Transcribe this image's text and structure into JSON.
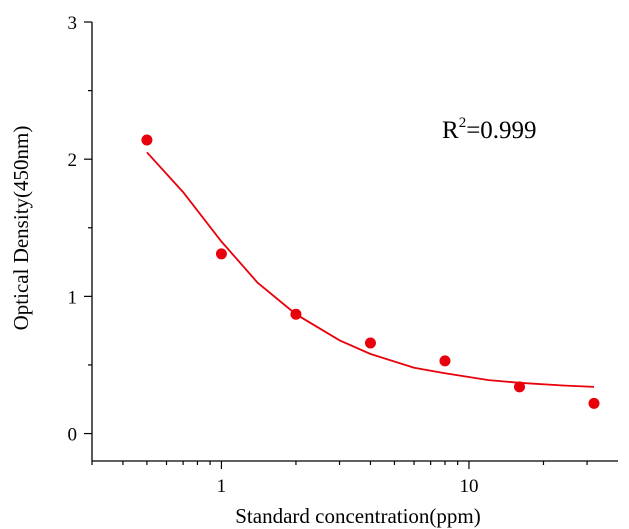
{
  "chart_data": {
    "type": "scatter",
    "title": "",
    "xlabel": "Standard concentration(ppm)",
    "ylabel": "Optical Density(450nm)",
    "x_scale": "log",
    "xlim": [
      0.3,
      40
    ],
    "ylim": [
      -0.2,
      3
    ],
    "x_ticks": [
      {
        "value": 1,
        "label": "1"
      },
      {
        "value": 10,
        "label": "10"
      }
    ],
    "y_ticks": [
      {
        "value": 0,
        "label": "0"
      },
      {
        "value": 1,
        "label": "1"
      },
      {
        "value": 2,
        "label": "2"
      },
      {
        "value": 3,
        "label": "3"
      }
    ],
    "grid": false,
    "series": [
      {
        "type": "scatter",
        "color": "#e8000b",
        "points": [
          {
            "x": 0.5,
            "y": 2.14
          },
          {
            "x": 1,
            "y": 1.31
          },
          {
            "x": 2,
            "y": 0.87
          },
          {
            "x": 4,
            "y": 0.66
          },
          {
            "x": 8,
            "y": 0.53
          },
          {
            "x": 16,
            "y": 0.34
          },
          {
            "x": 32,
            "y": 0.22
          }
        ]
      },
      {
        "type": "line",
        "color": "#e8000b",
        "points": [
          {
            "x": 0.5,
            "y": 2.05
          },
          {
            "x": 0.7,
            "y": 1.76
          },
          {
            "x": 1,
            "y": 1.4
          },
          {
            "x": 1.4,
            "y": 1.1
          },
          {
            "x": 2,
            "y": 0.87
          },
          {
            "x": 3,
            "y": 0.68
          },
          {
            "x": 4,
            "y": 0.58
          },
          {
            "x": 6,
            "y": 0.48
          },
          {
            "x": 8,
            "y": 0.44
          },
          {
            "x": 12,
            "y": 0.39
          },
          {
            "x": 16,
            "y": 0.37
          },
          {
            "x": 24,
            "y": 0.35
          },
          {
            "x": 32,
            "y": 0.34
          }
        ]
      }
    ],
    "annotations": [
      {
        "base": "R",
        "sup": "2",
        "rest": "=0.999"
      }
    ]
  }
}
